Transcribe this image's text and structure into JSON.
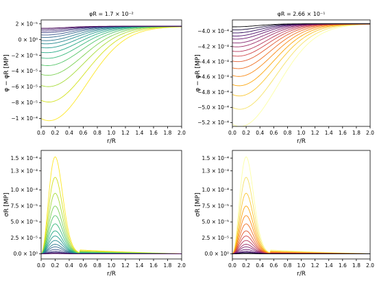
{
  "chart_data": [
    {
      "type": "line",
      "title": "φR = 1.7 × 10⁻²",
      "xlabel": "r/R",
      "ylabel": "φ − φR [MP]",
      "xlim": [
        0.0,
        2.0
      ],
      "ylim": [
        -0.00011,
        2.5e-05
      ],
      "xticks": [
        0.0,
        0.2,
        0.4,
        0.6,
        0.8,
        1.0,
        1.2,
        1.4,
        1.6,
        1.8,
        2.0
      ],
      "xtick_labels": [
        "0.0",
        "0.2",
        "0.4",
        "0.6",
        "0.8",
        "1.0",
        "1.2",
        "1.4",
        "1.6",
        "1.8",
        "2.0"
      ],
      "yticks": [
        -0.0001,
        -8e-05,
        -6e-05,
        -4e-05,
        -2e-05,
        0,
        2e-05
      ],
      "ytick_labels": [
        "−1 × 10⁻⁴",
        "−8 × 10⁻⁵",
        "−6 × 10⁻⁵",
        "−4 × 10⁻⁵",
        "−2 × 10⁻⁵",
        "0 × 10⁰",
        "2 × 10⁻⁵"
      ],
      "colormap": "viridis",
      "curve_family": {
        "count": 16,
        "baseline": 1.7e-05,
        "min_center_values": [
          -0.0001,
          -7.7e-05,
          -5.8e-05,
          -4.4e-05,
          -3.2e-05,
          -2.3e-05,
          -1.6e-05,
          -1e-05,
          -5e-06,
          -1e-06,
          3e-06,
          6e-06,
          9e-06,
          1.1e-05,
          1.3e-05,
          1.45e-05
        ]
      },
      "grid": false
    },
    {
      "type": "line",
      "title": "φR = 2.66 × 10⁻¹",
      "xlabel": "r/R",
      "ylabel": "φ − φR [MP]",
      "xlim": [
        0.0,
        2.0
      ],
      "ylim": [
        -0.000525,
        -0.000385
      ],
      "xticks": [
        0.0,
        0.2,
        0.4,
        0.6,
        0.8,
        1.0,
        1.2,
        1.4,
        1.6,
        1.8,
        2.0
      ],
      "xtick_labels": [
        "0.0",
        "0.2",
        "0.4",
        "0.6",
        "0.8",
        "1.0",
        "1.2",
        "1.4",
        "1.6",
        "1.8",
        "2.0"
      ],
      "yticks": [
        -0.00052,
        -0.0005,
        -0.00048,
        -0.00046,
        -0.00044,
        -0.00042,
        -0.0004
      ],
      "ytick_labels": [
        "−5.2 × 10⁻⁴",
        "−5.0 × 10⁻⁴",
        "−4.8 × 10⁻⁴",
        "−4.6 × 10⁻⁴",
        "−4.4 × 10⁻⁴",
        "−4.2 × 10⁻⁴",
        "−4.0 × 10⁻⁴"
      ],
      "colormap": "inferno",
      "curve_family": {
        "count": 16,
        "baseline": -0.00039,
        "min_center_values": [
          -0.000522,
          -0.0005,
          -0.000483,
          -0.00047,
          -0.000458,
          -0.000448,
          -0.000439,
          -0.000432,
          -0.000426,
          -0.00042,
          -0.000415,
          -0.00041,
          -0.000406,
          -0.000402,
          -0.000398,
          -0.000394
        ]
      },
      "grid": false
    },
    {
      "type": "line",
      "title": "",
      "xlabel": "r/R",
      "ylabel": "σR [MP]",
      "xlim": [
        0.0,
        2.0
      ],
      "ylim": [
        -8e-06,
        0.000162
      ],
      "xticks": [
        0.0,
        0.2,
        0.4,
        0.6,
        0.8,
        1.0,
        1.2,
        1.4,
        1.6,
        1.8,
        2.0
      ],
      "xtick_labels": [
        "0.0",
        "0.2",
        "0.4",
        "0.6",
        "0.8",
        "1.0",
        "1.2",
        "1.4",
        "1.6",
        "1.8",
        "2.0"
      ],
      "yticks": [
        0,
        2.5e-05,
        5e-05,
        7.5e-05,
        0.0001,
        0.00013,
        0.00015
      ],
      "ytick_labels": [
        "0.0 × 10⁰",
        "2.5 × 10⁻⁵",
        "5.0 × 10⁻⁵",
        "7.5 × 10⁻⁵",
        "1.0 × 10⁻⁴",
        "1.3 × 10⁻⁴",
        "1.5 × 10⁻⁴"
      ],
      "colormap": "viridis",
      "curve_family": {
        "count": 16,
        "peak_x": 0.2,
        "peak_values": [
          0.000152,
          0.00012,
          9.5e-05,
          7.5e-05,
          6e-05,
          4.7e-05,
          3.6e-05,
          2.8e-05,
          2.1e-05,
          1.5e-05,
          1.1e-05,
          7e-06,
          4e-06,
          2.5e-06,
          1.2e-06,
          4e-07
        ]
      },
      "grid": false
    },
    {
      "type": "line",
      "title": "",
      "xlabel": "r/R",
      "ylabel": "σR [MP]",
      "xlim": [
        0.0,
        2.0
      ],
      "ylim": [
        -8e-06,
        0.000162
      ],
      "xticks": [
        0.0,
        0.2,
        0.4,
        0.6,
        0.8,
        1.0,
        1.2,
        1.4,
        1.6,
        1.8,
        2.0
      ],
      "xtick_labels": [
        "0.0",
        "0.2",
        "0.4",
        "0.6",
        "0.8",
        "1.0",
        "1.2",
        "1.4",
        "1.6",
        "1.8",
        "2.0"
      ],
      "yticks": [
        0,
        2.5e-05,
        5e-05,
        7.5e-05,
        0.0001,
        0.00013,
        0.00015
      ],
      "ytick_labels": [
        "0.0 × 10⁰",
        "2.5 × 10⁻⁵",
        "5.0 × 10⁻⁵",
        "7.5 × 10⁻⁵",
        "1.0 × 10⁻⁴",
        "1.3 × 10⁻⁴",
        "1.5 × 10⁻⁴"
      ],
      "colormap": "inferno",
      "curve_family": {
        "count": 16,
        "peak_x": 0.2,
        "peak_values": [
          0.000152,
          0.00012,
          9.5e-05,
          7.5e-05,
          6e-05,
          4.7e-05,
          3.6e-05,
          2.8e-05,
          2.1e-05,
          1.5e-05,
          1.1e-05,
          7e-06,
          4e-06,
          2.5e-06,
          1.2e-06,
          4e-07
        ]
      },
      "grid": false
    }
  ],
  "colors": {
    "viridis": [
      "#fde725",
      "#d2e21b",
      "#a5db36",
      "#7ad151",
      "#54c568",
      "#35b779",
      "#22a884",
      "#1f988b",
      "#23888e",
      "#2a788e",
      "#31688e",
      "#39568c",
      "#414487",
      "#472f7d",
      "#481a6c",
      "#440154"
    ],
    "inferno": [
      "#fcffa4",
      "#f6e265",
      "#fac42a",
      "#fca50a",
      "#f98913",
      "#ef6e21",
      "#e1582c",
      "#cf4446",
      "#b63458",
      "#9b2964",
      "#81206c",
      "#66166e",
      "#4b0c6b",
      "#300a5b",
      "#170c3a",
      "#000004"
    ]
  }
}
